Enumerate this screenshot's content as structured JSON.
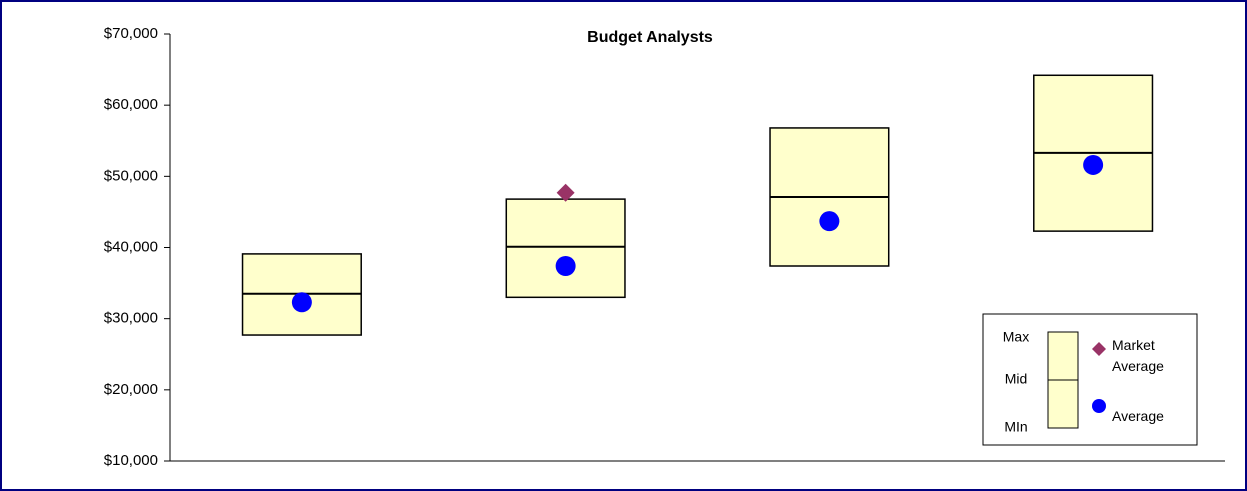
{
  "chart_data": {
    "type": "range",
    "title": "Budget Analysts",
    "min": [
      27700,
      33000,
      37400,
      42300
    ],
    "mid": [
      33500,
      40100,
      47100,
      53300
    ],
    "max": [
      39100,
      46800,
      56800,
      64200
    ],
    "box_color": "#ffffcc",
    "legend_box_labels": [
      "Max",
      "Mid",
      "MIn"
    ],
    "series": [
      {
        "name": "Market Average",
        "color": "#993366",
        "marker": "diamond",
        "values": [
          null,
          47700,
          null,
          null
        ]
      },
      {
        "name": "Average",
        "color": "#0000ff",
        "marker": "circle",
        "values": [
          32300,
          37400,
          43700,
          51600
        ]
      }
    ],
    "ylim": [
      10000,
      70000
    ],
    "yticks": [
      {
        "value": 10000,
        "label": "$10,000"
      },
      {
        "value": 20000,
        "label": "$20,000"
      },
      {
        "value": 30000,
        "label": "$30,000"
      },
      {
        "value": 40000,
        "label": "$40,000"
      },
      {
        "value": 50000,
        "label": "$50,000"
      },
      {
        "value": 60000,
        "label": "$60,000"
      },
      {
        "value": 70000,
        "label": "$70,000"
      }
    ],
    "legend": "bottom-right"
  }
}
